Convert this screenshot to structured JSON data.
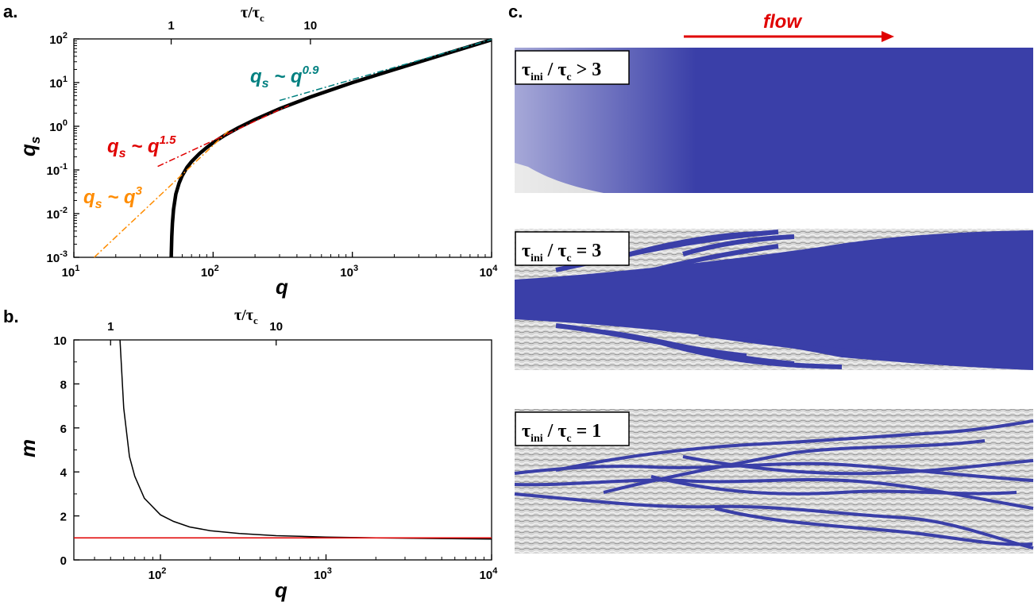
{
  "panels": {
    "a": "a.",
    "b": "b.",
    "c": "c."
  },
  "chart_data": [
    {
      "type": "line",
      "panel": "a",
      "xlabel": "q",
      "ylabel": "q_s",
      "xscale": "log",
      "yscale": "log",
      "xlim": [
        10,
        10000
      ],
      "ylim": [
        0.001,
        100
      ],
      "x_ticks": [
        {
          "base": "10",
          "exp": "1"
        },
        {
          "base": "10",
          "exp": "2"
        },
        {
          "base": "10",
          "exp": "3"
        },
        {
          "base": "10",
          "exp": "4"
        }
      ],
      "y_ticks": [
        {
          "base": "10",
          "exp": "-3"
        },
        {
          "base": "10",
          "exp": "-2"
        },
        {
          "base": "10",
          "exp": "-1"
        },
        {
          "base": "10",
          "exp": "0"
        },
        {
          "base": "10",
          "exp": "1"
        },
        {
          "base": "10",
          "exp": "2"
        }
      ],
      "top_axis": {
        "label_main": "τ/τ",
        "label_sub": "c",
        "ticks": [
          {
            "label": "1",
            "q": 50
          },
          {
            "label": "10",
            "q": 500
          }
        ]
      },
      "series": [
        {
          "style": "thick",
          "color": "#000000",
          "x": [
            50,
            50.5,
            51,
            52,
            54,
            57,
            60,
            65,
            70,
            80,
            90,
            100,
            120,
            150,
            200,
            300,
            500,
            1000,
            2000,
            5000,
            10000
          ],
          "y": [
            0.001,
            0.003,
            0.006,
            0.0125,
            0.028,
            0.05,
            0.0736,
            0.115,
            0.155,
            0.238,
            0.326,
            0.42,
            0.61,
            0.906,
            1.43,
            2.52,
            4.68,
            10.0,
            19.9,
            48.6,
            95.3
          ]
        },
        {
          "style": "dashdot",
          "color": "#FF8C00",
          "x": [
            14,
            130
          ],
          "y": [
            0.001,
            0.8
          ]
        },
        {
          "style": "dashdot",
          "color": "#E00000",
          "x": [
            40,
            350
          ],
          "y": [
            0.12,
            3.0
          ]
        },
        {
          "style": "dashdot",
          "color": "#008080",
          "x": [
            300,
            10000
          ],
          "y": [
            3.9,
            97
          ]
        }
      ],
      "annotations": [
        {
          "text": "q_s ~ q^0.9",
          "lhs": "q",
          "lhs_sub": "s",
          "rel": " ~ q",
          "exp": "0.9",
          "color": "#008080"
        },
        {
          "text": "q_s ~ q^1.5",
          "lhs": "q",
          "lhs_sub": "s",
          "rel": " ~ q",
          "exp": "1.5",
          "color": "#E00000"
        },
        {
          "text": "q_s ~ q^3",
          "lhs": "q",
          "lhs_sub": "s",
          "rel": " ~ q",
          "exp": "3",
          "color": "#FF8C00"
        }
      ]
    },
    {
      "type": "line",
      "panel": "b",
      "xlabel": "q",
      "ylabel": "m",
      "xscale": "log",
      "xlim": [
        30,
        10000
      ],
      "ylim": [
        0,
        10
      ],
      "x_ticks": [
        {
          "base": "10",
          "exp": "2"
        },
        {
          "base": "10",
          "exp": "3"
        },
        {
          "base": "10",
          "exp": "4"
        }
      ],
      "y_ticks": [
        "0",
        "2",
        "4",
        "6",
        "8",
        "10"
      ],
      "top_axis": {
        "label_main": "τ/τ",
        "label_sub": "c",
        "ticks": [
          {
            "label": "1",
            "q": 50
          },
          {
            "label": "10",
            "q": 500
          }
        ]
      },
      "series": [
        {
          "style": "thin",
          "color": "#000000",
          "x": [
            57,
            60,
            65,
            70,
            80,
            100,
            120,
            150,
            200,
            300,
            500,
            1000,
            2000,
            5000,
            10000
          ],
          "y": [
            10,
            6.9,
            4.7,
            3.8,
            2.8,
            2.05,
            1.75,
            1.5,
            1.33,
            1.2,
            1.1,
            1.04,
            1.0,
            0.97,
            0.95
          ]
        },
        {
          "style": "thin",
          "color": "#E00000",
          "x": [
            30,
            10000
          ],
          "y": [
            1,
            1
          ]
        }
      ]
    }
  ],
  "panel_c": {
    "flow_label": "flow",
    "flow_color": "#E00000",
    "channel_color": "#3A3FA8",
    "sub_panels": [
      {
        "label_main": "τ",
        "label_sub": "ini",
        "label_sep": " / ",
        "label_main2": "τ",
        "label_sub2": "c",
        "relation": " > 3"
      },
      {
        "label_main": "τ",
        "label_sub": "ini",
        "label_sep": " / ",
        "label_main2": "τ",
        "label_sub2": "c",
        "relation": " = 3"
      },
      {
        "label_main": "τ",
        "label_sub": "ini",
        "label_sep": " / ",
        "label_main2": "τ",
        "label_sub2": "c",
        "relation": " = 1"
      }
    ]
  }
}
